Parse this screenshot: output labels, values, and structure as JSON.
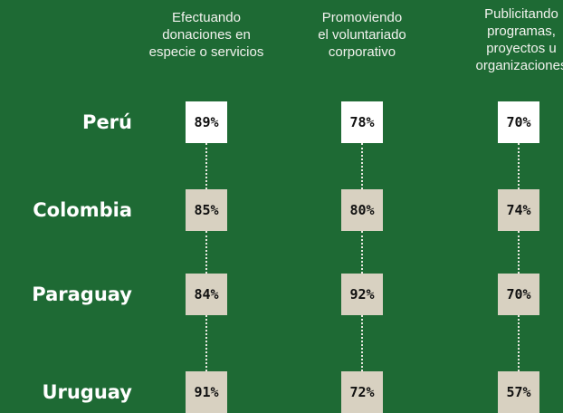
{
  "columns": [
    {
      "lines": [
        "Efectuando",
        "donaciones en",
        "especie o servicios"
      ]
    },
    {
      "lines": [
        "Promoviendo",
        "el voluntariado",
        "corporativo"
      ]
    },
    {
      "lines": [
        "Publicitando",
        "programas,",
        "proyectos u",
        "organizaciones"
      ]
    }
  ],
  "rows": [
    {
      "label": "Perú",
      "cells": [
        "89%",
        "78%",
        "70%"
      ]
    },
    {
      "label": "Colombia",
      "cells": [
        "85%",
        "80%",
        "74%"
      ]
    },
    {
      "label": "Paraguay",
      "cells": [
        "84%",
        "92%",
        "70%"
      ]
    },
    {
      "label": "Uruguay",
      "cells": [
        "91%",
        "72%",
        "57%"
      ]
    }
  ]
}
